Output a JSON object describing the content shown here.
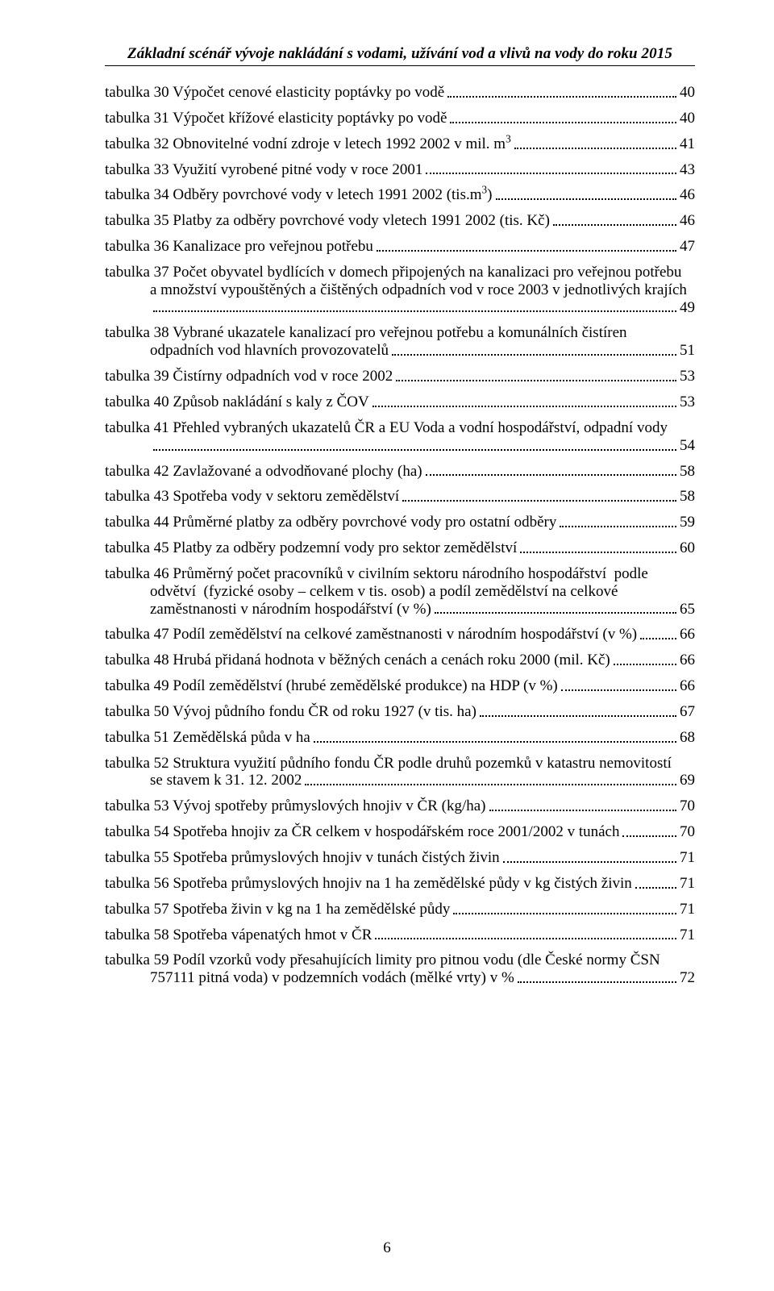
{
  "header": "Základní scénář vývoje nakládání s vodami, užívání vod a vlivů na vody do roku 2015",
  "pageNumber": "6",
  "toc": [
    {
      "kind": "simple",
      "text": "tabulka 30 Výpočet cenové elasticity poptávky po vodě",
      "page": "40"
    },
    {
      "kind": "simple",
      "text": "tabulka 31 Výpočet křížové elasticity poptávky po vodě",
      "page": "40"
    },
    {
      "kind": "sup",
      "pre": "tabulka 32 Obnovitelné vodní zdroje v letech 1992 2002 v mil. m",
      "sup": "3",
      "post": "",
      "page": "41"
    },
    {
      "kind": "simple",
      "text": "tabulka 33 Využití vyrobené pitné vody v roce 2001",
      "page": "43"
    },
    {
      "kind": "sup",
      "pre": "tabulka 34 Odběry povrchové vody v letech 1991 2002 (tis.m",
      "sup": "3",
      "post": ")",
      "page": "46"
    },
    {
      "kind": "simple",
      "text": "tabulka 35 Platby za odběry povrchové vody vletech 1991 2002 (tis. Kč)",
      "page": "46"
    },
    {
      "kind": "simple",
      "text": "tabulka 36 Kanalizace pro veřejnou potřebu",
      "page": "47"
    },
    {
      "kind": "wrapped",
      "lines": [
        "tabulka 37 Počet obyvatel bydlících v domech připojených na kanalizaci pro veřejnou potřebu",
        "a množství vypouštěných a čištěných odpadních vod v roce 2003 v jednotlivých krajích"
      ],
      "last": "",
      "page": "49",
      "indentFrom": 1
    },
    {
      "kind": "wrapped",
      "lines": [
        "tabulka 38 Vybrané ukazatele kanalizací pro veřejnou potřebu a komunálních čistíren"
      ],
      "last": "odpadních vod hlavních provozovatelů",
      "page": "51",
      "indentFrom": 1
    },
    {
      "kind": "simple",
      "text": "tabulka 39 Čistírny odpadních vod v roce 2002",
      "page": "53"
    },
    {
      "kind": "simple",
      "text": "tabulka 40 Způsob nakládání s kaly z ČOV",
      "page": "53"
    },
    {
      "kind": "wrapped",
      "lines": [
        "tabulka 41 Přehled vybraných ukazatelů ČR a EU Voda a vodní hospodářství, odpadní vody"
      ],
      "last": "",
      "page": "54",
      "indentFrom": 1
    },
    {
      "kind": "simple",
      "text": "tabulka 42 Zavlažované a odvodňované plochy (ha)",
      "page": "58"
    },
    {
      "kind": "simple",
      "text": "tabulka 43 Spotřeba vody v sektoru zemědělství",
      "page": "58"
    },
    {
      "kind": "simple",
      "text": "tabulka 44 Průměrné platby za odběry povrchové vody pro ostatní odběry",
      "page": "59"
    },
    {
      "kind": "simple",
      "text": "tabulka 45 Platby za odběry podzemní vody pro sektor zemědělství",
      "page": "60"
    },
    {
      "kind": "wrapped",
      "lines": [
        "tabulka 46 Průměrný počet pracovníků v civilním sektoru národního hospodářství  podle",
        "odvětví  (fyzické osoby – celkem v tis. osob) a podíl zemědělství na celkové"
      ],
      "last": "zaměstnanosti v národním hospodářství (v %)",
      "page": "65",
      "indentFrom": 1
    },
    {
      "kind": "simple",
      "text": "tabulka 47 Podíl zemědělství na celkové zaměstnanosti v národním hospodářství (v %)",
      "page": "66"
    },
    {
      "kind": "simple",
      "text": "tabulka 48 Hrubá přidaná hodnota v běžných cenách a cenách roku 2000 (mil. Kč)",
      "page": "66"
    },
    {
      "kind": "simple",
      "text": "tabulka 49 Podíl zemědělství (hrubé zemědělské produkce) na HDP (v %)",
      "page": "66"
    },
    {
      "kind": "simple",
      "text": "tabulka 50 Vývoj půdního fondu ČR od roku 1927 (v tis. ha)",
      "page": "67"
    },
    {
      "kind": "simple",
      "text": "tabulka 51 Zemědělská půda v ha",
      "page": "68"
    },
    {
      "kind": "wrapped",
      "lines": [
        "tabulka 52 Struktura využití půdního fondu ČR podle druhů pozemků v katastru nemovitostí"
      ],
      "last": "se stavem k 31. 12. 2002",
      "page": "69",
      "indentFrom": 1
    },
    {
      "kind": "simple",
      "text": "tabulka 53 Vývoj spotřeby průmyslových hnojiv v ČR (kg/ha)",
      "page": "70"
    },
    {
      "kind": "simple",
      "text": "tabulka 54 Spotřeba hnojiv za ČR celkem v hospodářském roce 2001/2002 v tunách",
      "page": "70"
    },
    {
      "kind": "simple",
      "text": "tabulka 55 Spotřeba průmyslových hnojiv v tunách čistých živin",
      "page": "71"
    },
    {
      "kind": "simple",
      "text": "tabulka 56 Spotřeba průmyslových hnojiv na 1 ha zemědělské půdy v kg čistých živin",
      "page": "71"
    },
    {
      "kind": "simple",
      "text": "tabulka 57 Spotřeba živin v kg na 1 ha zemědělské půdy",
      "page": "71"
    },
    {
      "kind": "simple",
      "text": "tabulka 58 Spotřeba vápenatých hmot v ČR",
      "page": "71"
    },
    {
      "kind": "wrapped",
      "lines": [
        "tabulka 59 Podíl vzorků vody přesahujících limity pro pitnou vodu (dle České normy ČSN"
      ],
      "last": "757111 pitná voda) v podzemních vodách (mělké vrty) v %",
      "page": "72",
      "indentFrom": 1
    }
  ]
}
